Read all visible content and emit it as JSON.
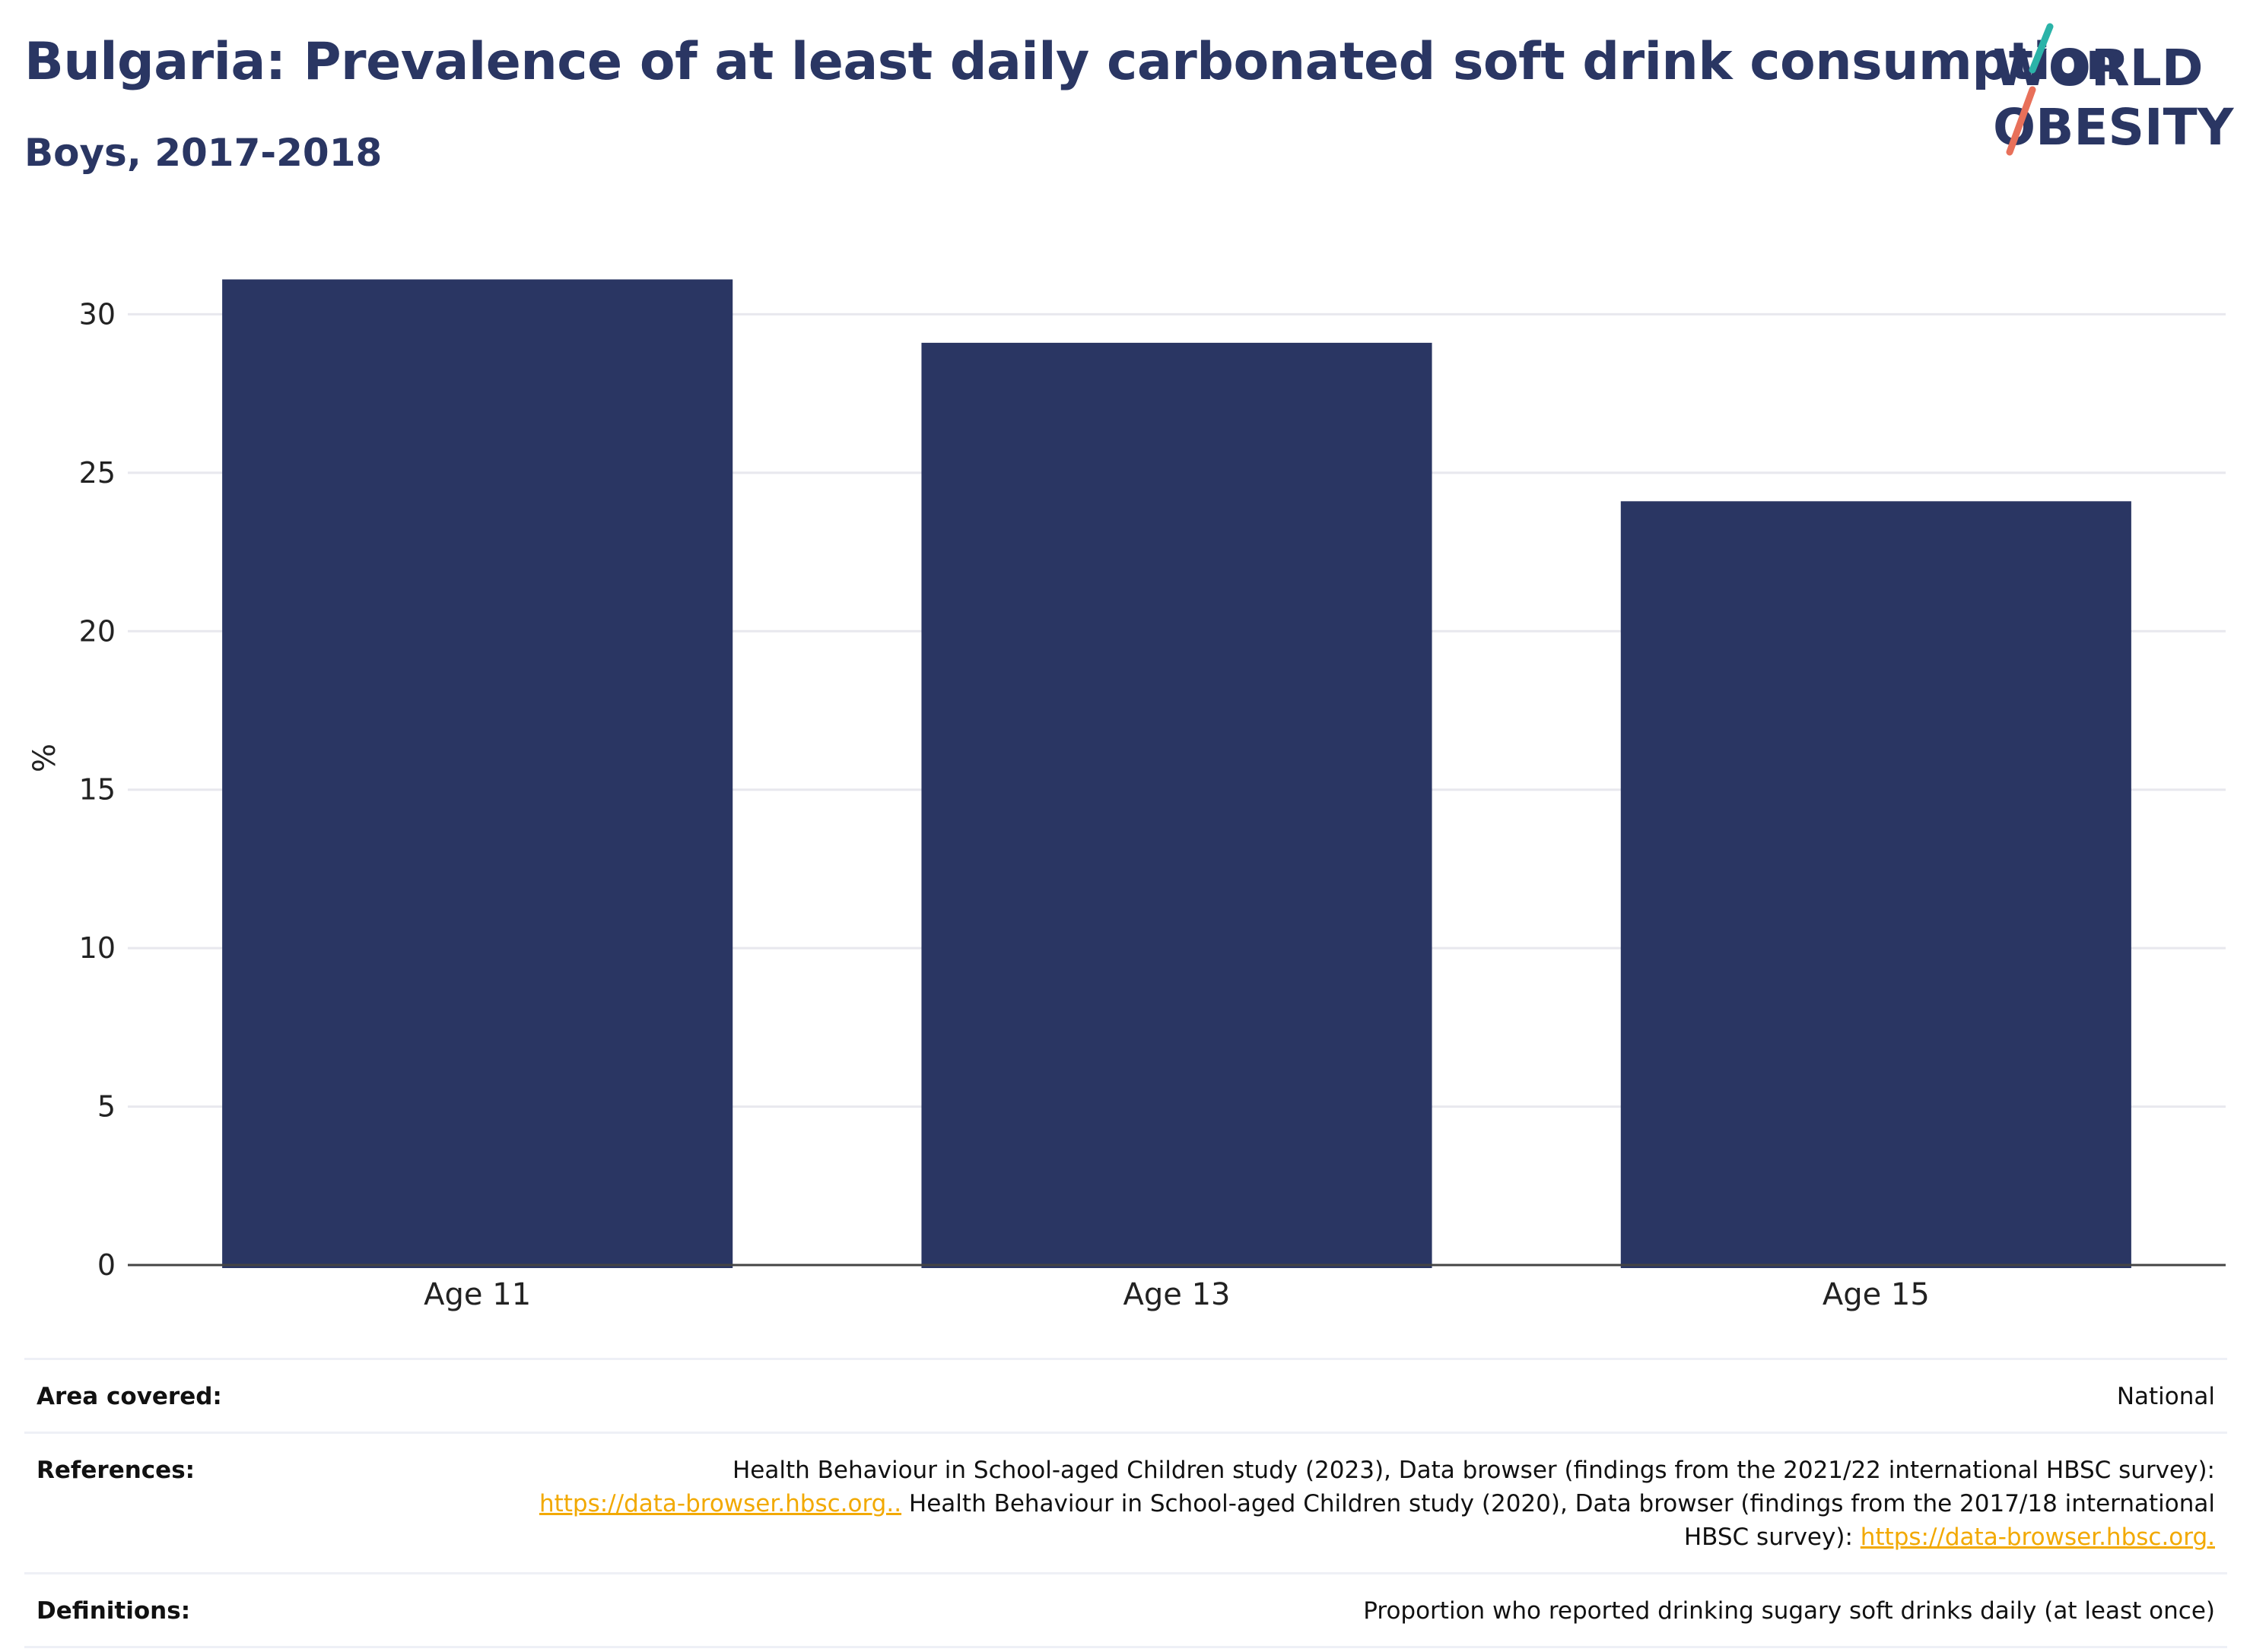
{
  "header": {
    "title": "Bulgaria: Prevalence of at least daily carbonated soft drink consumption",
    "subtitle": "Boys, 2017-2018"
  },
  "logo": {
    "line1": "WORLD",
    "line2": "OBESITY",
    "accent_teal": "#2bb3a8",
    "accent_coral": "#e8705a",
    "text_color": "#2a3663"
  },
  "chart_data": {
    "type": "bar",
    "categories": [
      "Age 11",
      "Age 13",
      "Age 15"
    ],
    "values": [
      31.1,
      29.1,
      24.1
    ],
    "title": "Bulgaria: Prevalence of at least daily carbonated soft drink consumption",
    "subtitle": "Boys, 2017-2018",
    "xlabel": "",
    "ylabel": "%",
    "ylim": [
      0,
      32
    ],
    "yticks": [
      0,
      5,
      10,
      15,
      20,
      25,
      30
    ],
    "grid": true,
    "bar_color": "#2a3663"
  },
  "info": {
    "area": {
      "label": "Area covered:",
      "value": "National"
    },
    "references": {
      "label": "References:",
      "text1": "Health Behaviour in School-aged Children study (2023), Data browser (findings from the 2021/22 international HBSC survey):",
      "link1": "https://data-browser.hbsc.org..",
      "text2": " Health Behaviour in School-aged Children study (2020), Data browser (findings from the 2017/18 international HBSC survey): ",
      "link2": "https://data-browser.hbsc.org."
    },
    "definitions": {
      "label": "Definitions:",
      "value": "Proportion who reported drinking sugary soft drinks daily (at least once)"
    }
  }
}
